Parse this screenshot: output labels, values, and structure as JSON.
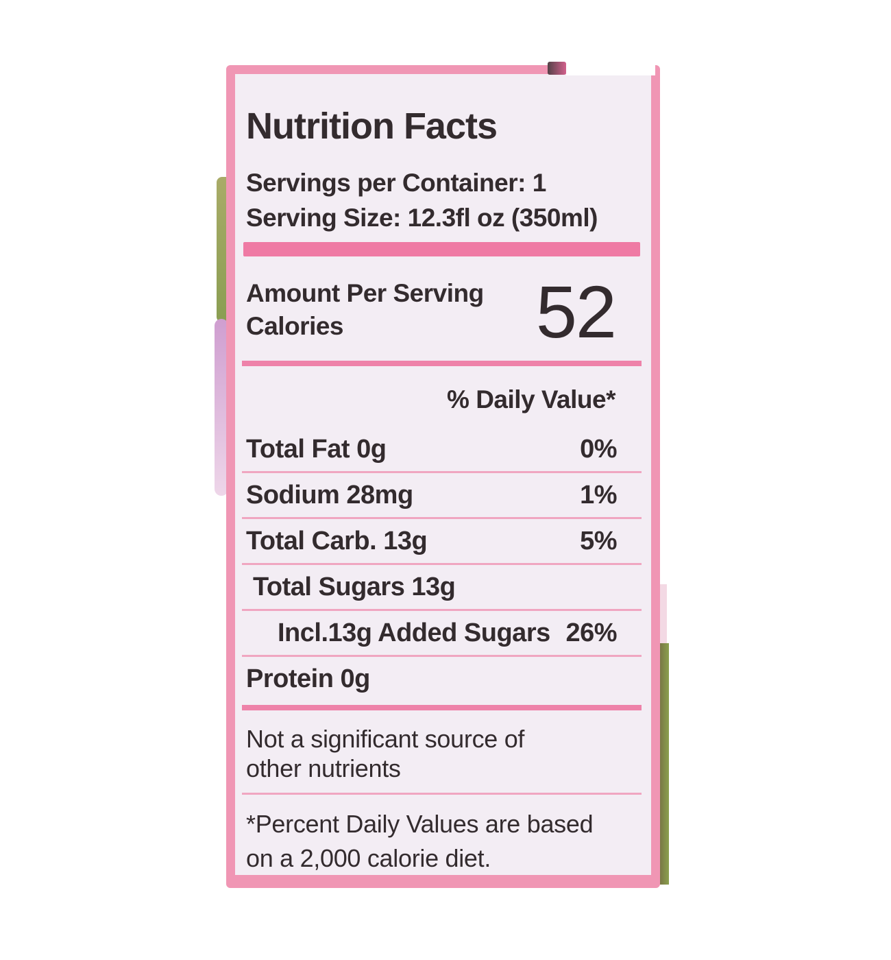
{
  "photo": {
    "background_color": "#ffffff",
    "package_edge_colors": {
      "left_green": "#8a9e52",
      "left_purple": "#cf9ed0",
      "right_green": "#8ba04e",
      "right_brown": "#6f6140",
      "right_pink": "#f3d9e4"
    }
  },
  "label": {
    "colors": {
      "border": "#f096b4",
      "background": "#f3edf4",
      "text": "#332b2e",
      "thick_bar": "#ef7aa4",
      "section_divider": "#ee82a9",
      "hairline": "#f0a6c1"
    },
    "title": "Nutrition Facts",
    "servings_per_container": "Servings per Container: 1",
    "serving_size": "Serving Size: 12.3fl oz (350ml)",
    "amount_per_serving": "Amount Per Serving",
    "calories": {
      "label": "Calories",
      "value": "52"
    },
    "daily_value_header": "% Daily Value*",
    "nutrients": [
      {
        "name": "Total Fat 0g",
        "daily_value": "0%"
      },
      {
        "name": "Sodium 28mg",
        "daily_value": "1%"
      },
      {
        "name": "Total Carb. 13g",
        "daily_value": "5%"
      },
      {
        "name": "Total Sugars 13g",
        "daily_value": ""
      },
      {
        "name": "Incl.13g Added Sugars",
        "daily_value": "26%"
      },
      {
        "name": "Protein 0g",
        "daily_value": ""
      }
    ],
    "insignificant_note": [
      "Not a significant source of",
      "other nutrients"
    ],
    "footnote": [
      "*Percent Daily Values are based",
      "on a 2,000 calorie diet."
    ]
  }
}
